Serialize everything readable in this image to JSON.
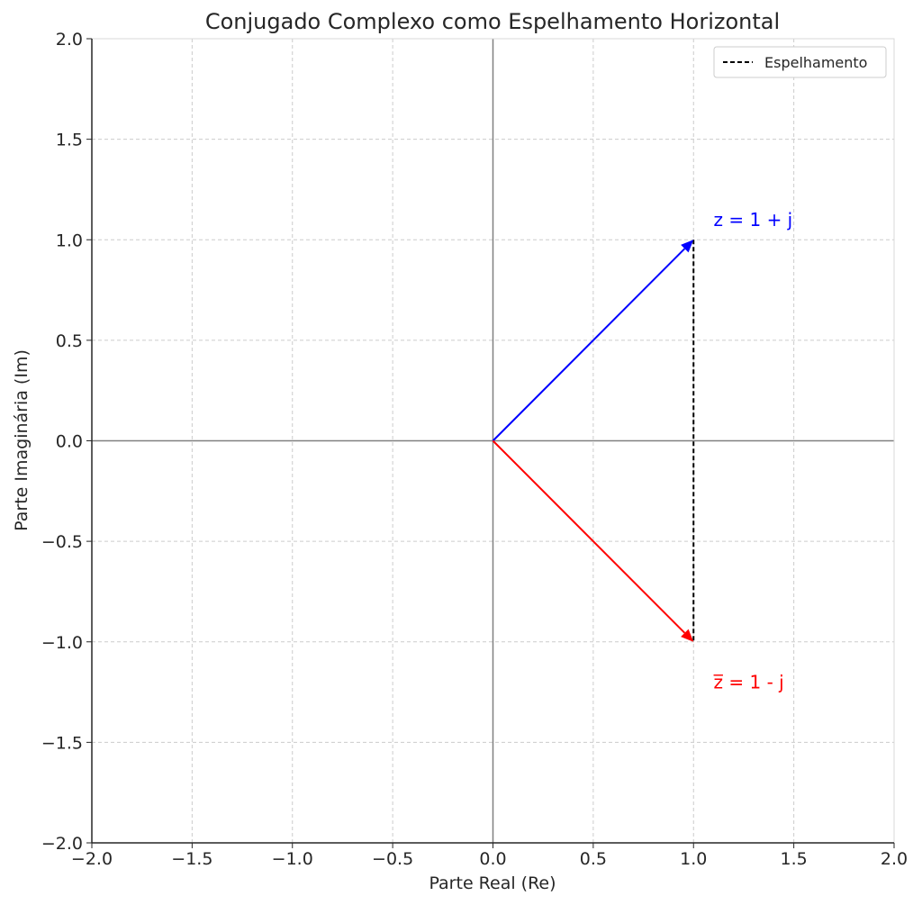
{
  "chart_data": {
    "type": "line",
    "title": "Conjugado Complexo como Espelhamento Horizontal",
    "xlabel": "Parte Real (Re)",
    "ylabel": "Parte Imaginária (Im)",
    "xlim": [
      -2.0,
      2.0
    ],
    "ylim": [
      -2.0,
      2.0
    ],
    "xticks": [
      "−2.0",
      "−1.5",
      "−1.0",
      "−0.5",
      "0.0",
      "0.5",
      "1.0",
      "1.5",
      "2.0"
    ],
    "yticks": [
      "−2.0",
      "−1.5",
      "−1.0",
      "−0.5",
      "0.0",
      "0.5",
      "1.0",
      "1.5",
      "2.0"
    ],
    "xtick_values": [
      -2.0,
      -1.5,
      -1.0,
      -0.5,
      0.0,
      0.5,
      1.0,
      1.5,
      2.0
    ],
    "ytick_values": [
      -2.0,
      -1.5,
      -1.0,
      -0.5,
      0.0,
      0.5,
      1.0,
      1.5,
      2.0
    ],
    "grid": true,
    "legend_position": "top-right",
    "vectors": [
      {
        "from": [
          0,
          0
        ],
        "to": [
          1,
          1
        ],
        "color": "#0000ff"
      },
      {
        "from": [
          0,
          0
        ],
        "to": [
          1,
          -1
        ],
        "color": "#ff0000"
      }
    ],
    "series": [
      {
        "name": "Espelhamento",
        "x": [
          1,
          1
        ],
        "y": [
          1,
          -1
        ],
        "color": "#000000",
        "style": "dashed"
      }
    ],
    "annotations": [
      {
        "text": "z = 1 + j",
        "x": 1.1,
        "y": 1.1,
        "color": "#0000ff"
      },
      {
        "text": "z̅ = 1 - j",
        "x": 1.1,
        "y": -1.2,
        "color": "#ff0000"
      }
    ]
  }
}
